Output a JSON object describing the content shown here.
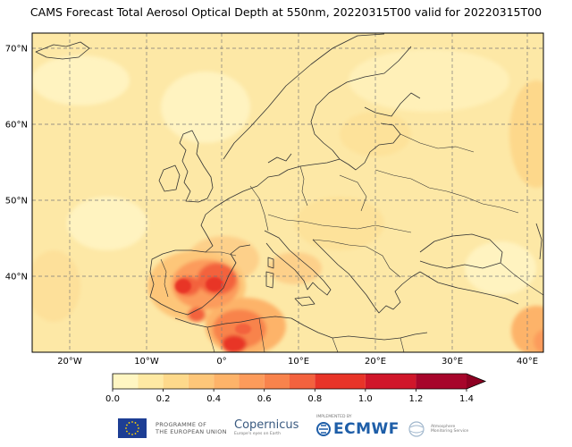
{
  "title": "CAMS Forecast Total Aerosol Optical Depth at 550nm, 20220315T00 valid for 20220315T00",
  "map": {
    "lat_labels": [
      "70°N",
      "60°N",
      "50°N",
      "40°N"
    ],
    "lon_labels": [
      "20°W",
      "10°W",
      "0°",
      "10°E",
      "20°E",
      "30°E",
      "40°E"
    ],
    "gridlines": true,
    "extent": {
      "lon_min": -25,
      "lon_max": 45,
      "lat_min": 30,
      "lat_max": 72
    },
    "colors": {
      "background": "#fde8a6",
      "border": "#000000",
      "coastline": "#333333"
    }
  },
  "colorbar": {
    "ticks": [
      "0.0",
      "0.2",
      "0.4",
      "0.6",
      "0.8",
      "1.0",
      "1.2",
      "1.4"
    ],
    "levels": [
      0,
      0.1,
      0.2,
      0.3,
      0.4,
      0.5,
      0.6,
      0.7,
      0.8,
      1.0,
      1.2,
      1.4,
      1.6
    ],
    "colors": [
      "#fff6c2",
      "#fee9a3",
      "#fdd98b",
      "#fdc679",
      "#fdb369",
      "#fc9b5b",
      "#f8834c",
      "#f3623e",
      "#e83428",
      "#d0162a",
      "#a7052b",
      "#8d0022"
    ],
    "extend": "max"
  },
  "footer": {
    "eu_text_line1": "PROGRAMME OF",
    "eu_text_line2": "THE EUROPEAN UNION",
    "copernicus_label": "Copernicus",
    "copernicus_sub": "Europe's eyes on Earth",
    "ecmwf_implemented": "IMPLEMENTED BY",
    "ecmwf_label": "ECMWF",
    "atmosphere_label": "Atmosphere Monitoring Service"
  }
}
